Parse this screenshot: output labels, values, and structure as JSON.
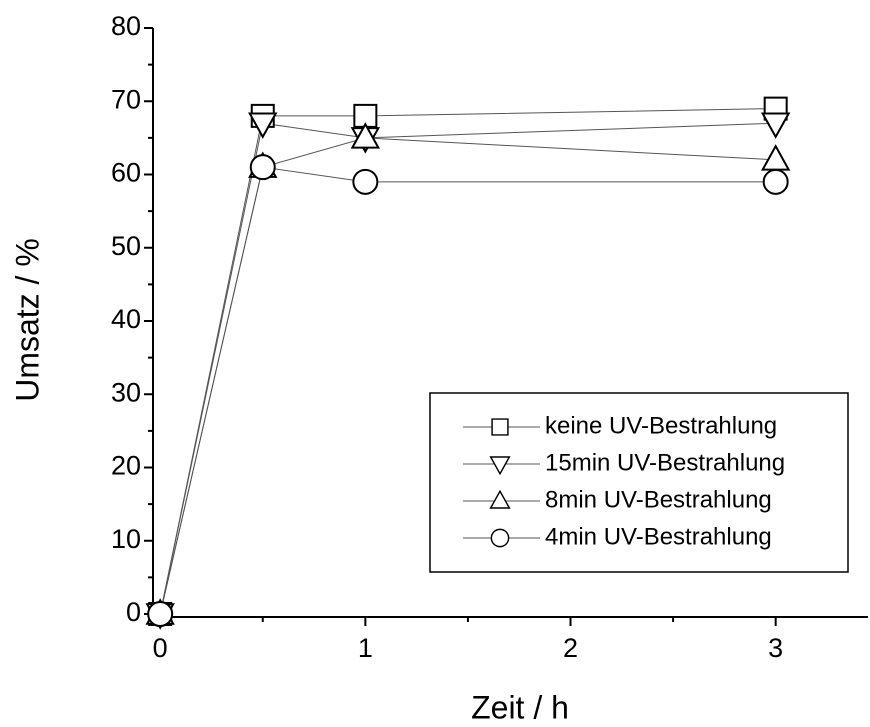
{
  "chart_data": {
    "type": "line",
    "x_label": "Zeit / h",
    "y_label": "Umsatz / %",
    "x": [
      0,
      0.5,
      1,
      3
    ],
    "series": [
      {
        "name": "keine UV-Bestrahlung",
        "marker": "square",
        "color": "#000000",
        "values": [
          0,
          68,
          68,
          69
        ]
      },
      {
        "name": "15min UV-Bestrahlung",
        "marker": "triangle-down",
        "color": "#000000",
        "values": [
          0,
          67,
          65,
          67
        ]
      },
      {
        "name": "8min UV-Bestrahlung",
        "marker": "triangle-up",
        "color": "#000000",
        "values": [
          0,
          61,
          65,
          62
        ]
      },
      {
        "name": "4min UV-Bestrahlung",
        "marker": "circle",
        "color": "#000000",
        "values": [
          0,
          61,
          59,
          59
        ]
      }
    ],
    "xlim": [
      -0.035,
      3.45
    ],
    "xticks": [
      0,
      1,
      2,
      3
    ],
    "ylim": [
      0,
      80
    ],
    "yticks": [
      0,
      10,
      20,
      30,
      40,
      50,
      60,
      70,
      80
    ],
    "legend": "lower right",
    "grid": false
  }
}
